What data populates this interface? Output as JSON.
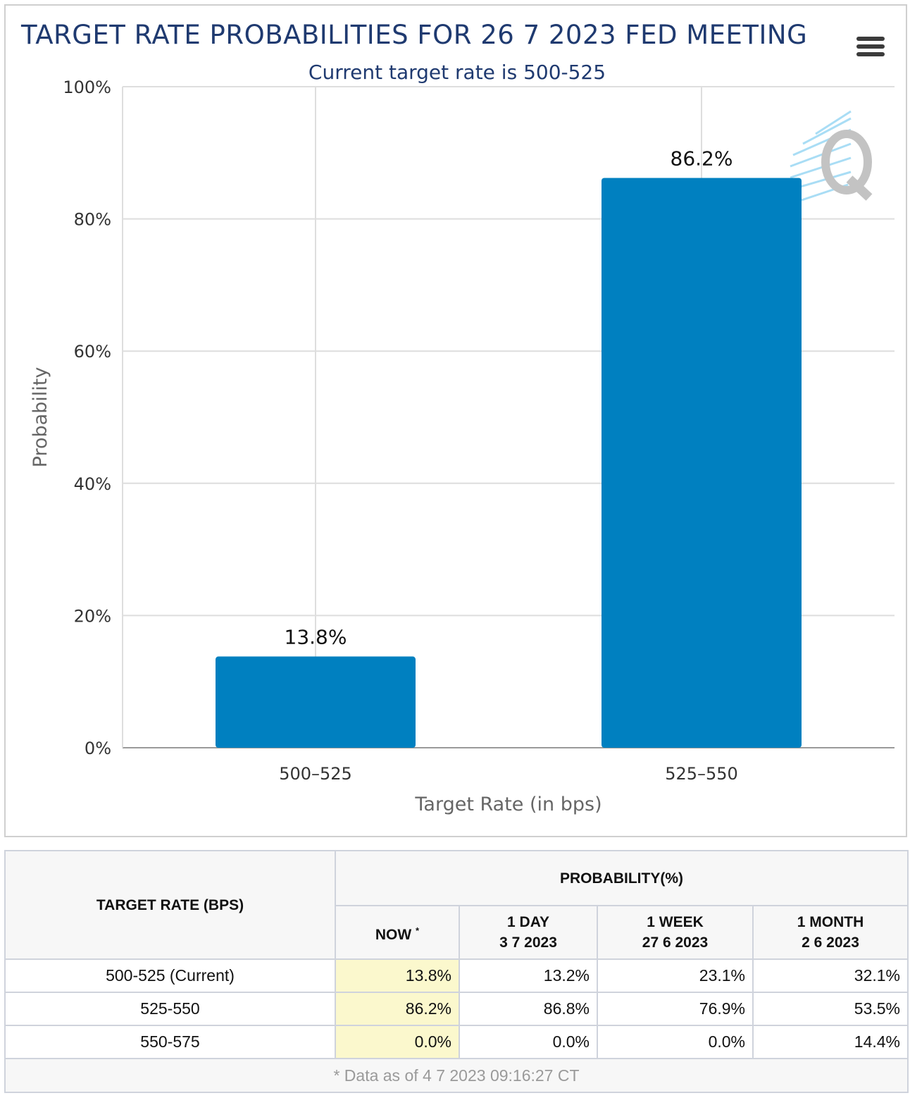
{
  "chart": {
    "title": "TARGET RATE PROBABILITIES FOR 26 7 2023 FED MEETING",
    "subtitle": "Current target rate is 500-525",
    "menu_icon": "hamburger-menu-icon",
    "watermark_icon": "cme-q-logo-icon",
    "bar_color": "#0080C0",
    "title_color": "#1f3a70"
  },
  "chart_data": {
    "type": "bar",
    "title": "TARGET RATE PROBABILITIES FOR 26 7 2023 FED MEETING",
    "subtitle": "Current target rate is 500-525",
    "categories": [
      "500–525",
      "525–550"
    ],
    "values": [
      13.8,
      86.2
    ],
    "data_labels": [
      "13.8%",
      "86.2%"
    ],
    "xlabel": "Target Rate (in bps)",
    "ylabel": "Probability",
    "ylim": [
      0,
      100
    ],
    "yticks": [
      "0%",
      "20%",
      "40%",
      "60%",
      "80%",
      "100%"
    ],
    "ytick_values": [
      0,
      20,
      40,
      60,
      80,
      100
    ],
    "grid": true,
    "legend": "none"
  },
  "table": {
    "header_target_rate": "TARGET RATE (BPS)",
    "header_probability": "PROBABILITY(%)",
    "col_now": "NOW",
    "col_now_mark": "*",
    "col_1day_label": "1 DAY",
    "col_1day_date": "3 7 2023",
    "col_1week_label": "1 WEEK",
    "col_1week_date": "27 6 2023",
    "col_1month_label": "1 MONTH",
    "col_1month_date": "2 6 2023",
    "rows": [
      {
        "rate": "500-525 (Current)",
        "now": "13.8%",
        "day": "13.2%",
        "week": "23.1%",
        "month": "32.1%"
      },
      {
        "rate": "525-550",
        "now": "86.2%",
        "day": "86.8%",
        "week": "76.9%",
        "month": "53.5%"
      },
      {
        "rate": "550-575",
        "now": "0.0%",
        "day": "0.0%",
        "week": "0.0%",
        "month": "14.4%"
      }
    ],
    "footnote": "* Data as of 4 7 2023 09:16:27 CT"
  }
}
